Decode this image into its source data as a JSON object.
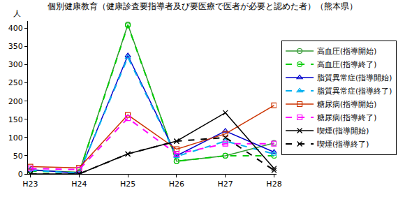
{
  "chart_data": {
    "type": "line",
    "title": "個別健康教育（健康診査要指導者及び要医療で医者が必要と認めた者）（熊本県）",
    "y_label": "人",
    "categories": [
      "H23",
      "H24",
      "H25",
      "H26",
      "H27",
      "H28"
    ],
    "series": [
      {
        "name": "高血圧(指導開始)",
        "color": "#339933",
        "marker": "circle",
        "line_style": "solid",
        "values": [
          10,
          5,
          410,
          35,
          50,
          85
        ]
      },
      {
        "name": "高血圧(指導終了)",
        "color": "#00cc00",
        "marker": "circle",
        "line_style": "dash",
        "values": [
          8,
          3,
          408,
          35,
          50,
          50
        ]
      },
      {
        "name": "脂質異常症(指導開始)",
        "color": "#0000cc",
        "marker": "triangle-up",
        "line_style": "solid",
        "values": [
          12,
          2,
          325,
          50,
          118,
          60
        ]
      },
      {
        "name": "脂質異常症(指導終了)",
        "color": "#00b0f0",
        "marker": "triangle-up",
        "line_style": "dash",
        "values": [
          10,
          2,
          320,
          48,
          90,
          55
        ]
      },
      {
        "name": "糖尿病(指導開始)",
        "color": "#cc3300",
        "marker": "square",
        "line_style": "solid",
        "values": [
          20,
          17,
          162,
          68,
          110,
          188
        ]
      },
      {
        "name": "糖尿病(指導終了)",
        "color": "#ff00ff",
        "marker": "square",
        "line_style": "dash",
        "values": [
          15,
          12,
          153,
          55,
          83,
          83
        ]
      },
      {
        "name": "喫煙(指導開始)",
        "color": "#000000",
        "marker": "x",
        "line_style": "solid",
        "values": [
          0,
          0,
          55,
          90,
          168,
          15
        ]
      },
      {
        "name": "喫煙(指導終了)",
        "color": "#000000",
        "marker": "x",
        "line_style": "dash",
        "values": [
          0,
          0,
          55,
          90,
          100,
          10
        ]
      }
    ],
    "ylim": [
      0,
      420
    ],
    "yticks": [
      0,
      50,
      100,
      150,
      200,
      250,
      300,
      350,
      400
    ],
    "grid": false,
    "legend": "right"
  }
}
